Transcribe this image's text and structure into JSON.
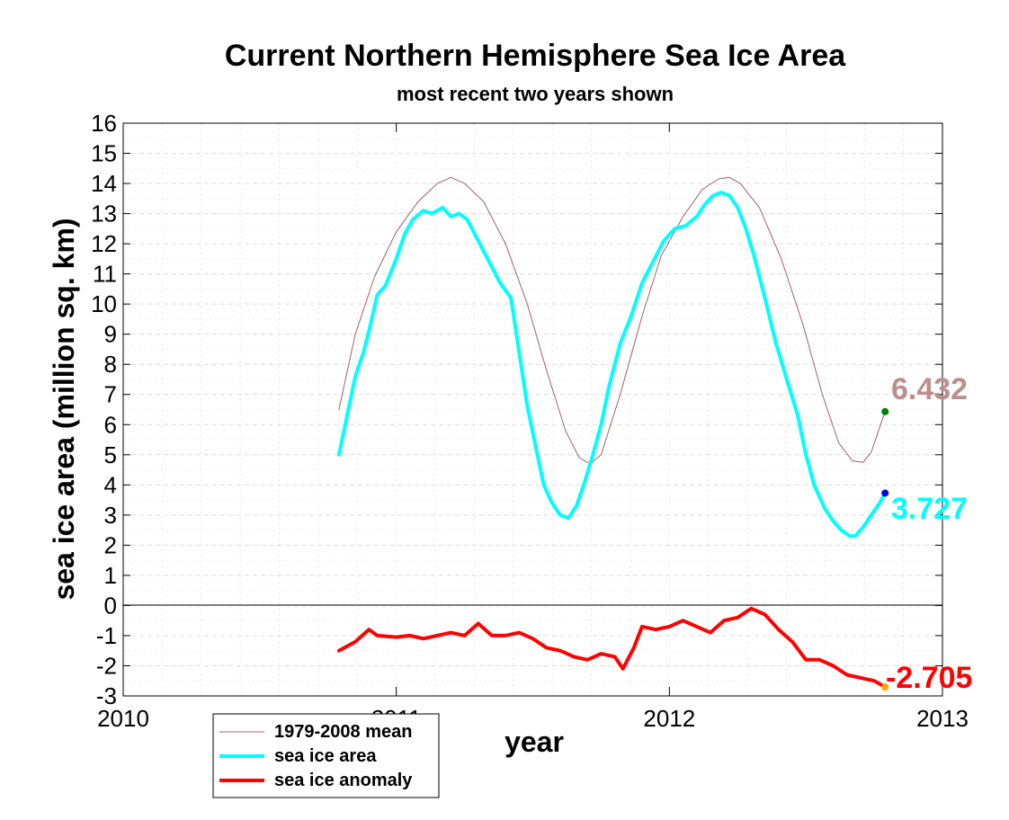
{
  "chart_data": {
    "type": "line",
    "title": "Current Northern Hemisphere Sea Ice Area",
    "subtitle": "most recent two years shown",
    "xlabel": "year",
    "ylabel": "sea ice area (million sq. km)",
    "xlim": [
      2010,
      2013
    ],
    "ylim": [
      -3,
      16
    ],
    "x_ticks": [
      "2010",
      "2011",
      "2012",
      "2013"
    ],
    "y_ticks": [
      "16",
      "15",
      "14",
      "13",
      "12",
      "11",
      "10",
      "9",
      "8",
      "7",
      "6",
      "5",
      "4",
      "3",
      "2",
      "1",
      "0",
      "-1",
      "-2",
      "-3"
    ],
    "grid": true,
    "legend_position": "bottom-left",
    "series": [
      {
        "name": "1979-2008 mean",
        "color": "#a0606a",
        "x": [
          2010.79,
          2010.85,
          2010.92,
          2011.0,
          2011.08,
          2011.15,
          2011.2,
          2011.25,
          2011.32,
          2011.4,
          2011.48,
          2011.55,
          2011.62,
          2011.67,
          2011.71,
          2011.75,
          2011.82,
          2011.9,
          2011.97,
          2012.05,
          2012.12,
          2012.18,
          2012.22,
          2012.26,
          2012.33,
          2012.41,
          2012.49,
          2012.56,
          2012.62,
          2012.67,
          2012.71,
          2012.74,
          2012.79
        ],
        "y": [
          6.5,
          9.0,
          10.9,
          12.4,
          13.4,
          14.0,
          14.2,
          14.0,
          13.4,
          12.0,
          10.0,
          7.8,
          5.8,
          4.9,
          4.7,
          5.0,
          7.0,
          9.6,
          11.6,
          12.9,
          13.8,
          14.15,
          14.2,
          14.0,
          13.2,
          11.5,
          9.3,
          7.0,
          5.4,
          4.8,
          4.75,
          5.1,
          6.432
        ]
      },
      {
        "name": "sea ice area",
        "color": "#00ffff",
        "x": [
          2010.79,
          2010.82,
          2010.85,
          2010.88,
          2010.9,
          2010.93,
          2010.96,
          2011.0,
          2011.03,
          2011.06,
          2011.1,
          2011.13,
          2011.17,
          2011.2,
          2011.23,
          2011.26,
          2011.3,
          2011.34,
          2011.38,
          2011.42,
          2011.45,
          2011.48,
          2011.51,
          2011.54,
          2011.57,
          2011.6,
          2011.63,
          2011.66,
          2011.69,
          2011.72,
          2011.75,
          2011.78,
          2011.82,
          2011.86,
          2011.9,
          2011.94,
          2011.98,
          2012.02,
          2012.06,
          2012.1,
          2012.13,
          2012.16,
          2012.19,
          2012.22,
          2012.25,
          2012.28,
          2012.31,
          2012.35,
          2012.39,
          2012.43,
          2012.47,
          2012.5,
          2012.53,
          2012.57,
          2012.6,
          2012.63,
          2012.66,
          2012.68,
          2012.71,
          2012.74,
          2012.77,
          2012.79
        ],
        "y": [
          5.0,
          6.3,
          7.6,
          8.4,
          9.1,
          10.3,
          10.6,
          11.5,
          12.3,
          12.8,
          13.1,
          13.0,
          13.2,
          12.9,
          13.0,
          12.8,
          12.1,
          11.4,
          10.7,
          10.2,
          8.4,
          6.6,
          5.3,
          4.0,
          3.4,
          3.0,
          2.9,
          3.3,
          4.1,
          5.0,
          6.0,
          7.3,
          8.7,
          9.6,
          10.7,
          11.4,
          12.1,
          12.5,
          12.6,
          12.9,
          13.3,
          13.6,
          13.7,
          13.6,
          13.2,
          12.5,
          11.6,
          10.2,
          8.7,
          7.5,
          6.3,
          5.0,
          4.0,
          3.2,
          2.8,
          2.5,
          2.3,
          2.3,
          2.6,
          3.0,
          3.4,
          3.727
        ]
      },
      {
        "name": "sea ice anomaly",
        "color": "#ff0000",
        "x": [
          2010.79,
          2010.85,
          2010.9,
          2010.93,
          2011.0,
          2011.05,
          2011.1,
          2011.15,
          2011.2,
          2011.25,
          2011.3,
          2011.35,
          2011.4,
          2011.45,
          2011.5,
          2011.55,
          2011.6,
          2011.65,
          2011.7,
          2011.75,
          2011.8,
          2011.83,
          2011.87,
          2011.9,
          2011.95,
          2012.0,
          2012.05,
          2012.1,
          2012.15,
          2012.2,
          2012.25,
          2012.3,
          2012.35,
          2012.4,
          2012.45,
          2012.5,
          2012.55,
          2012.6,
          2012.65,
          2012.7,
          2012.75,
          2012.79
        ],
        "y": [
          -1.5,
          -1.2,
          -0.8,
          -1.0,
          -1.05,
          -1.0,
          -1.1,
          -1.0,
          -0.9,
          -1.0,
          -0.6,
          -1.0,
          -1.0,
          -0.9,
          -1.1,
          -1.4,
          -1.5,
          -1.7,
          -1.8,
          -1.6,
          -1.7,
          -2.1,
          -1.4,
          -0.7,
          -0.8,
          -0.7,
          -0.5,
          -0.7,
          -0.9,
          -0.5,
          -0.4,
          -0.1,
          -0.3,
          -0.8,
          -1.2,
          -1.8,
          -1.8,
          -2.0,
          -2.3,
          -2.4,
          -2.5,
          -2.705
        ]
      }
    ],
    "current_values": {
      "mean": "6.432",
      "area": "3.727",
      "anomaly": "-2.705"
    },
    "marker_colors": {
      "mean": "#008000",
      "area": "#0000ff",
      "anomaly": "#ffa500"
    },
    "value_label_colors": {
      "mean": "#bc8f8f",
      "area": "#00ffff",
      "anomaly": "#ff0000"
    }
  }
}
